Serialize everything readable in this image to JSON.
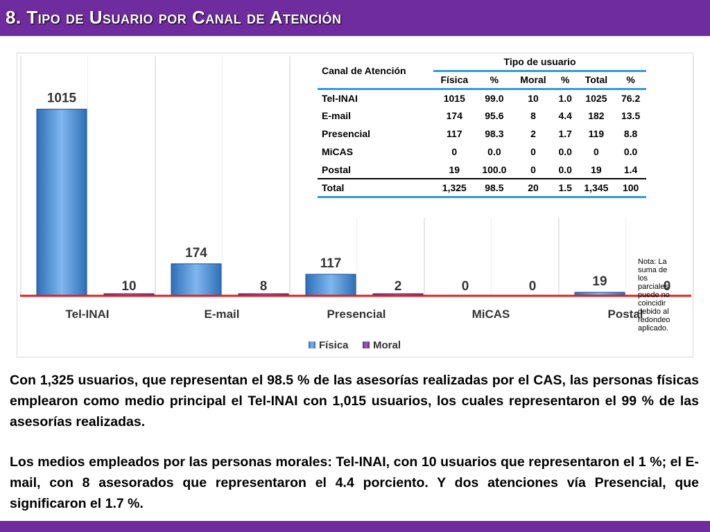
{
  "header": {
    "title": "8. Tipo de Usuario por Canal de Atención"
  },
  "colors": {
    "purple": "#6e2c9e",
    "fisica": "#4a90d9",
    "moral": "#7b3fa0",
    "accent_line": "#e02020",
    "table_line": "#2e9bd6"
  },
  "chart_data": {
    "type": "bar",
    "title": "",
    "categories": [
      "Tel-INAI",
      "E-mail",
      "Presencial",
      "MiCAS",
      "Postal"
    ],
    "series": [
      {
        "name": "Física",
        "values": [
          1015,
          174,
          117,
          0,
          19
        ]
      },
      {
        "name": "Moral",
        "values": [
          10,
          8,
          2,
          0,
          0
        ]
      }
    ],
    "ylim": [
      0,
      1100
    ],
    "legend": "bottom",
    "xlabel": "",
    "ylabel": ""
  },
  "table": {
    "header_canal": "Canal de Atención",
    "header_tipo": "Tipo de usuario",
    "subheaders": [
      "Física",
      "%",
      "Moral",
      "%",
      "Total",
      "%"
    ],
    "rows": [
      [
        "Tel-INAI",
        "1015",
        "99.0",
        "10",
        "1.0",
        "1025",
        "76.2"
      ],
      [
        "E-mail",
        "174",
        "95.6",
        "8",
        "4.4",
        "182",
        "13.5"
      ],
      [
        "Presencial",
        "117",
        "98.3",
        "2",
        "1.7",
        "119",
        "8.8"
      ],
      [
        "MiCAS",
        "0",
        "0.0",
        "0",
        "0.0",
        "0",
        "0.0"
      ],
      [
        "Postal",
        "19",
        "100.0",
        "0",
        "0.0",
        "19",
        "1.4"
      ]
    ],
    "total_row": [
      "Total",
      "1,325",
      "98.5",
      "20",
      "1.5",
      "1,345",
      "100"
    ],
    "note": "Nota: La suma de los parciales puede no coincidir debido al redondeo aplicado."
  },
  "body": {
    "paragraph1": "Con 1,325 usuarios, que representan el 98.5 % de las asesorías realizadas por el CAS, las personas físicas emplearon como medio principal el Tel-INAI con 1,015 usuarios, los cuales representaron el 99 % de las asesorías realizadas.",
    "paragraph2": "Los medios empleados por las personas morales: Tel-INAI, con 10 usuarios que representaron el 1 %; el E-mail, con 8 asesorados que representaron el 4.4 porciento. Y dos atenciones vía Presencial, que significaron el 1.7 %."
  }
}
